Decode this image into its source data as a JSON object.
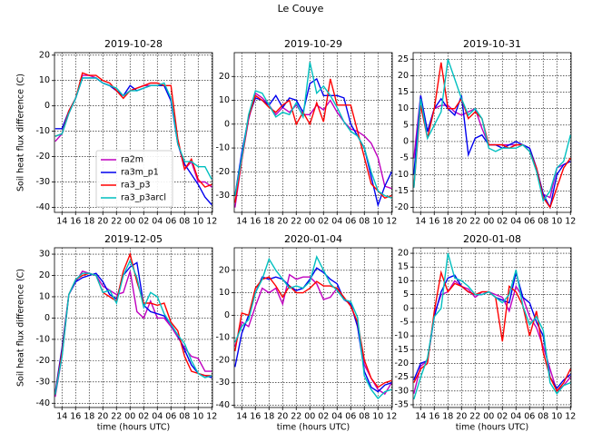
{
  "title": "Le Couye",
  "chart_data": [
    {
      "type": "line",
      "title": "2019-10-28",
      "ylabel": "Soil heat flux difference (C)",
      "grid": true,
      "legend": "lower left",
      "x": [
        13,
        14,
        15,
        16,
        17,
        18,
        19,
        20,
        21,
        22,
        23,
        24,
        25,
        26,
        27,
        28,
        29,
        30,
        31,
        32,
        33,
        34,
        35,
        36
      ],
      "xlim": [
        12.9,
        36.1
      ],
      "xticks": [
        14,
        16,
        18,
        20,
        22,
        {
          "value": 24,
          "label": "00"
        },
        {
          "value": 26,
          "label": "02"
        },
        {
          "value": 28,
          "label": "04"
        },
        {
          "value": 30,
          "label": "06"
        },
        {
          "value": 32,
          "label": "08"
        },
        {
          "value": 34,
          "label": "10"
        },
        {
          "value": 36,
          "label": "12"
        }
      ],
      "ylim": [
        -42,
        21
      ],
      "yticks": [
        -40,
        -30,
        -20,
        -10,
        0,
        10,
        20
      ],
      "series": [
        {
          "name": "ra2m",
          "color": "#bf00bf",
          "values": [
            -14,
            -11,
            -3,
            3,
            12,
            12,
            11,
            9,
            8,
            6,
            4,
            6,
            7,
            8,
            8,
            8,
            8,
            2,
            -14,
            -25,
            -22,
            -30,
            -30,
            -32
          ]
        },
        {
          "name": "ra3m_p1",
          "color": "#0000ee",
          "values": [
            -9,
            -9,
            -2,
            3,
            11,
            11,
            11,
            9,
            8,
            6,
            4,
            8,
            6,
            7,
            8,
            8,
            8,
            2,
            -15,
            -23,
            -27,
            -31,
            -36,
            -39
          ]
        },
        {
          "name": "ra3_p3",
          "color": "#ff0000",
          "values": [
            -12,
            -11,
            -2,
            3,
            13,
            12,
            12,
            10,
            9,
            6,
            3,
            6,
            7,
            8,
            9,
            9,
            8,
            8,
            -13,
            -25,
            -21,
            -29,
            -32,
            -31
          ]
        },
        {
          "name": "ra3_p3arcl",
          "color": "#00bfbf",
          "values": [
            -12,
            -11,
            -3,
            3,
            11,
            11,
            11,
            9,
            8,
            7,
            4,
            6,
            6,
            7,
            8,
            8,
            9,
            3,
            -15,
            -22,
            -22,
            -24,
            -24,
            -29
          ]
        }
      ]
    },
    {
      "type": "line",
      "title": "2019-10-29",
      "grid": true,
      "x": [
        13,
        14,
        15,
        16,
        17,
        18,
        19,
        20,
        21,
        22,
        23,
        24,
        25,
        26,
        27,
        28,
        29,
        30,
        31,
        32,
        33,
        34,
        35,
        36
      ],
      "xlim": [
        12.9,
        36.1
      ],
      "xticks": [
        14,
        16,
        18,
        20,
        22,
        {
          "value": 24,
          "label": "00"
        },
        {
          "value": 26,
          "label": "02"
        },
        {
          "value": 28,
          "label": "04"
        },
        {
          "value": 30,
          "label": "06"
        },
        {
          "value": 32,
          "label": "08"
        },
        {
          "value": 34,
          "label": "10"
        },
        {
          "value": 36,
          "label": "12"
        }
      ],
      "ylim": [
        -37,
        30
      ],
      "yticks": [
        -30,
        -20,
        -10,
        0,
        10,
        20
      ],
      "series": [
        {
          "color": "#bf00bf",
          "values": [
            -35,
            -15,
            2,
            13,
            11,
            8,
            4,
            7,
            5,
            8,
            4,
            4,
            8,
            6,
            10,
            5,
            1,
            -2,
            -3,
            -5,
            -8,
            -14,
            -26,
            -27
          ]
        },
        {
          "color": "#0000ee",
          "values": [
            -30,
            -12,
            3,
            11,
            10,
            8,
            12,
            7,
            11,
            10,
            5,
            17,
            19,
            12,
            12,
            12,
            11,
            0,
            -5,
            -10,
            -22,
            -34,
            -26,
            -20
          ]
        },
        {
          "color": "#ff0000",
          "values": [
            -33,
            -15,
            3,
            12,
            10,
            7,
            5,
            8,
            10,
            0,
            5,
            0,
            9,
            1,
            19,
            8,
            8,
            8,
            -3,
            -14,
            -25,
            -28,
            -31,
            -30
          ]
        },
        {
          "color": "#00bfbf",
          "values": [
            -30,
            -14,
            4,
            14,
            13,
            8,
            3,
            5,
            4,
            9,
            3,
            26,
            13,
            16,
            12,
            7,
            1,
            -3,
            -5,
            -10,
            -20,
            -28,
            -30,
            -31
          ]
        }
      ]
    },
    {
      "type": "line",
      "title": "2019-10-31",
      "grid": true,
      "x": [
        13,
        14,
        15,
        16,
        17,
        18,
        19,
        20,
        21,
        22,
        23,
        24,
        25,
        26,
        27,
        28,
        29,
        30,
        31,
        32,
        33,
        34,
        35,
        36
      ],
      "xlim": [
        12.9,
        36.1
      ],
      "xticks": [
        14,
        16,
        18,
        20,
        22,
        {
          "value": 24,
          "label": "00"
        },
        {
          "value": 26,
          "label": "02"
        },
        {
          "value": 28,
          "label": "04"
        },
        {
          "value": 30,
          "label": "06"
        },
        {
          "value": 32,
          "label": "08"
        },
        {
          "value": 34,
          "label": "10"
        },
        {
          "value": 36,
          "label": "12"
        }
      ],
      "ylim": [
        -21.5,
        27
      ],
      "yticks": [
        -20,
        -15,
        -10,
        -5,
        0,
        5,
        10,
        15,
        20,
        25
      ],
      "series": [
        {
          "color": "#bf00bf",
          "values": [
            -5,
            14,
            3,
            10,
            11,
            11,
            9,
            8,
            9,
            10,
            4,
            -1,
            -1,
            -1,
            -1,
            -1,
            -1,
            -2,
            -8,
            -16,
            -17,
            -8,
            -7,
            -6
          ]
        },
        {
          "color": "#0000ee",
          "values": [
            -10,
            14,
            3,
            10,
            13,
            10,
            8,
            14,
            -4,
            1,
            2,
            -1,
            -1,
            -2,
            -1,
            0,
            -1,
            -2,
            -8,
            -16,
            -20,
            -10,
            -7,
            -6
          ]
        },
        {
          "color": "#ff0000",
          "values": [
            -14,
            11,
            1,
            10,
            24,
            10,
            10,
            13,
            7,
            9,
            7,
            -1,
            -1,
            -1,
            -2,
            -1,
            -1,
            -3,
            -8,
            -17,
            -20,
            -14,
            -8,
            -5
          ]
        },
        {
          "color": "#00bfbf",
          "values": [
            -14,
            13,
            1,
            5,
            9,
            25,
            19,
            13,
            8,
            10,
            7,
            -2,
            -3,
            -2,
            -2,
            -2,
            -1,
            -3,
            -9,
            -18,
            -15,
            -8,
            -6,
            2
          ]
        }
      ]
    },
    {
      "type": "line",
      "title": "2019-12-05",
      "ylabel": "Soil heat flux difference (C)",
      "xlabel": "time (hours UTC)",
      "grid": true,
      "x": [
        13,
        14,
        15,
        16,
        17,
        18,
        19,
        20,
        21,
        22,
        23,
        24,
        25,
        26,
        27,
        28,
        29,
        30,
        31,
        32,
        33,
        34,
        35,
        36
      ],
      "xlim": [
        12.9,
        36.1
      ],
      "xticks": [
        14,
        16,
        18,
        20,
        22,
        {
          "value": 24,
          "label": "00"
        },
        {
          "value": 26,
          "label": "02"
        },
        {
          "value": 28,
          "label": "04"
        },
        {
          "value": 30,
          "label": "06"
        },
        {
          "value": 32,
          "label": "08"
        },
        {
          "value": 34,
          "label": "10"
        },
        {
          "value": 36,
          "label": "12"
        }
      ],
      "ylim": [
        -42,
        33
      ],
      "yticks": [
        -40,
        -30,
        -20,
        -10,
        0,
        10,
        20,
        30
      ],
      "series": [
        {
          "color": "#bf00bf",
          "values": [
            -37,
            -18,
            11,
            17,
            22,
            21,
            20,
            15,
            13,
            11,
            12,
            22,
            3,
            0,
            8,
            0,
            0,
            -4,
            -9,
            -14,
            -18,
            -19,
            -25,
            -25
          ]
        },
        {
          "color": "#0000ee",
          "values": [
            -35,
            -14,
            11,
            17,
            19,
            20,
            21,
            17,
            11,
            9,
            20,
            24,
            26,
            6,
            3,
            2,
            1,
            -3,
            -8,
            -15,
            -22,
            -26,
            -27,
            -28
          ]
        },
        {
          "color": "#ff0000",
          "values": [
            -36,
            -16,
            11,
            18,
            20,
            21,
            20,
            12,
            10,
            8,
            22,
            30,
            17,
            7,
            7,
            6,
            7,
            -2,
            -6,
            -18,
            -25,
            -26,
            -27,
            -27
          ]
        },
        {
          "color": "#00bfbf",
          "values": [
            -36,
            -18,
            11,
            18,
            21,
            21,
            20,
            12,
            13,
            7,
            20,
            27,
            19,
            5,
            12,
            10,
            2,
            -3,
            -8,
            -12,
            -20,
            -26,
            -28,
            -27
          ]
        }
      ]
    },
    {
      "type": "line",
      "title": "2020-01-04",
      "xlabel": "time (hours UTC)",
      "grid": true,
      "x": [
        13,
        14,
        15,
        16,
        17,
        18,
        19,
        20,
        21,
        22,
        23,
        24,
        25,
        26,
        27,
        28,
        29,
        30,
        31,
        32,
        33,
        34,
        35,
        36
      ],
      "xlim": [
        12.9,
        36.1
      ],
      "xticks": [
        14,
        16,
        18,
        20,
        22,
        {
          "value": 24,
          "label": "00"
        },
        {
          "value": 26,
          "label": "02"
        },
        {
          "value": 28,
          "label": "04"
        },
        {
          "value": 30,
          "label": "06"
        },
        {
          "value": 32,
          "label": "08"
        },
        {
          "value": 34,
          "label": "10"
        },
        {
          "value": 36,
          "label": "12"
        }
      ],
      "ylim": [
        -41,
        30
      ],
      "yticks": [
        -40,
        -30,
        -20,
        -10,
        0,
        10,
        20
      ],
      "series": [
        {
          "color": "#bf00bf",
          "values": [
            -14,
            -3,
            -5,
            4,
            12,
            10,
            12,
            5,
            18,
            16,
            17,
            17,
            14,
            7,
            8,
            12,
            7,
            5,
            -5,
            -22,
            -28,
            -33,
            -35,
            -30
          ]
        },
        {
          "color": "#0000ee",
          "values": [
            -23,
            -8,
            0,
            10,
            17,
            16,
            17,
            16,
            13,
            11,
            12,
            16,
            21,
            19,
            16,
            14,
            7,
            5,
            -5,
            -25,
            -32,
            -34,
            -31,
            -30
          ]
        },
        {
          "color": "#ff0000",
          "values": [
            -16,
            1,
            0,
            12,
            16,
            17,
            13,
            8,
            13,
            10,
            10,
            12,
            15,
            13,
            13,
            12,
            8,
            4,
            -3,
            -20,
            -28,
            -32,
            -30,
            -29
          ]
        },
        {
          "color": "#00bfbf",
          "values": [
            -12,
            -5,
            -2,
            10,
            16,
            25,
            20,
            16,
            12,
            13,
            12,
            15,
            26,
            20,
            14,
            11,
            7,
            6,
            -1,
            -27,
            -33,
            -37,
            -34,
            -33
          ]
        }
      ]
    },
    {
      "type": "line",
      "title": "2020-01-08",
      "xlabel": "time (hours UTC)",
      "grid": true,
      "x": [
        13,
        14,
        15,
        16,
        17,
        18,
        19,
        20,
        21,
        22,
        23,
        24,
        25,
        26,
        27,
        28,
        29,
        30,
        31,
        32,
        33,
        34,
        35,
        36
      ],
      "xlim": [
        12.9,
        36.1
      ],
      "xticks": [
        14,
        16,
        18,
        20,
        22,
        {
          "value": 24,
          "label": "00"
        },
        {
          "value": 26,
          "label": "02"
        },
        {
          "value": 28,
          "label": "04"
        },
        {
          "value": 30,
          "label": "06"
        },
        {
          "value": 32,
          "label": "08"
        },
        {
          "value": 34,
          "label": "10"
        },
        {
          "value": 36,
          "label": "12"
        }
      ],
      "ylim": [
        -36,
        22
      ],
      "yticks": [
        -35,
        -30,
        -25,
        -20,
        -15,
        -10,
        -5,
        0,
        5,
        10,
        15,
        20
      ],
      "series": [
        {
          "color": "#bf00bf",
          "values": [
            -31,
            -21,
            -19,
            -2,
            5,
            6,
            10,
            8,
            7,
            4,
            6,
            6,
            5,
            4,
            -1,
            8,
            4,
            -3,
            -7,
            -14,
            -22,
            -30,
            -28,
            -25
          ]
        },
        {
          "color": "#0000ee",
          "values": [
            -26,
            -20,
            -19,
            -3,
            6,
            11,
            12,
            8,
            6,
            5,
            5,
            6,
            4,
            3,
            2,
            13,
            4,
            2,
            -5,
            -10,
            -25,
            -29,
            -26,
            -24
          ]
        },
        {
          "color": "#ff0000",
          "values": [
            -27,
            -22,
            -20,
            -1,
            13,
            6,
            9,
            8,
            6,
            5,
            6,
            6,
            4,
            -12,
            8,
            6,
            1,
            -10,
            -1,
            -16,
            -25,
            -30,
            -27,
            -22
          ]
        },
        {
          "color": "#00bfbf",
          "values": [
            -33,
            -25,
            -18,
            -3,
            0,
            20,
            11,
            10,
            8,
            5,
            5,
            6,
            4,
            2,
            5,
            14,
            1,
            -6,
            -3,
            -8,
            -27,
            -31,
            -28,
            -27
          ]
        }
      ]
    }
  ]
}
